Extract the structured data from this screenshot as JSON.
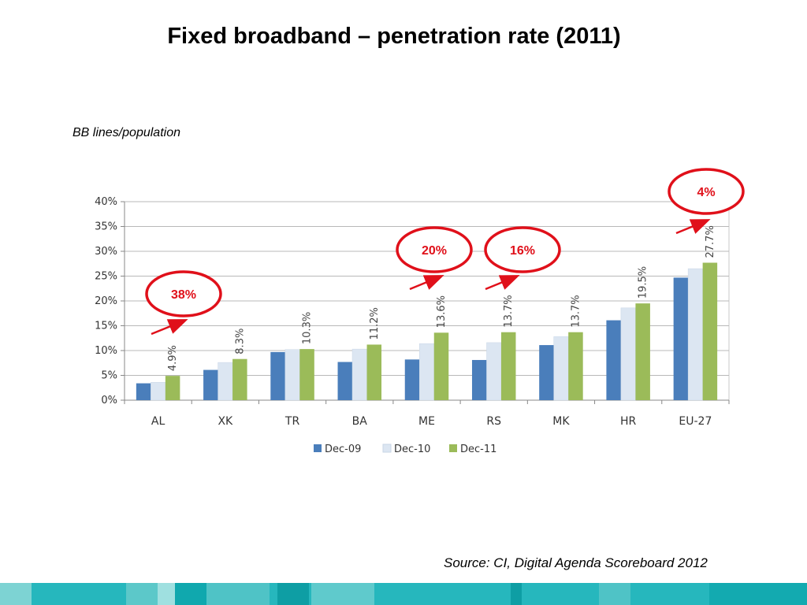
{
  "title": "Fixed broadband – penetration rate (2011)",
  "subtitle": "BB lines/population",
  "source": "Source: CI, Digital Agenda Scoreboard 2012",
  "colors": {
    "dec09": "#4a7ebb",
    "dec10": "#dce6f2",
    "dec11": "#9bbb59",
    "grid": "#b8b8b8",
    "callout": "#e0101a"
  },
  "chart_data": {
    "type": "bar",
    "categories": [
      "AL",
      "XK",
      "TR",
      "BA",
      "ME",
      "RS",
      "MK",
      "HR",
      "EU-27"
    ],
    "series": [
      {
        "name": "Dec-09",
        "values": [
          3.4,
          6.1,
          9.7,
          7.7,
          8.2,
          8.1,
          11.1,
          16.1,
          24.7
        ]
      },
      {
        "name": "Dec-10",
        "values": [
          3.6,
          7.6,
          10.2,
          10.3,
          11.4,
          11.6,
          12.8,
          18.6,
          26.5
        ]
      },
      {
        "name": "Dec-11",
        "values": [
          4.9,
          8.3,
          10.3,
          11.2,
          13.6,
          13.7,
          13.7,
          19.5,
          27.7
        ]
      }
    ],
    "data_labels": [
      "4.9%",
      "8.3%",
      "10.3%",
      "11.2%",
      "13.6%",
      "13.7%",
      "13.7%",
      "19.5%",
      "27.7%"
    ],
    "ylim": [
      0,
      40
    ],
    "yticks": [
      0,
      5,
      10,
      15,
      20,
      25,
      30,
      35,
      40
    ],
    "ytick_labels": [
      "0%",
      "5%",
      "10%",
      "15%",
      "20%",
      "25%",
      "30%",
      "35%",
      "40%"
    ],
    "grid": true,
    "legend_placement": "bottom",
    "xlabel": "",
    "ylabel": "",
    "annotations": [
      {
        "text": "38%",
        "category": "AL"
      },
      {
        "text": "20%",
        "category": "ME"
      },
      {
        "text": "16%",
        "category": "RS"
      },
      {
        "text": "4%",
        "category": "EU-27"
      }
    ]
  }
}
